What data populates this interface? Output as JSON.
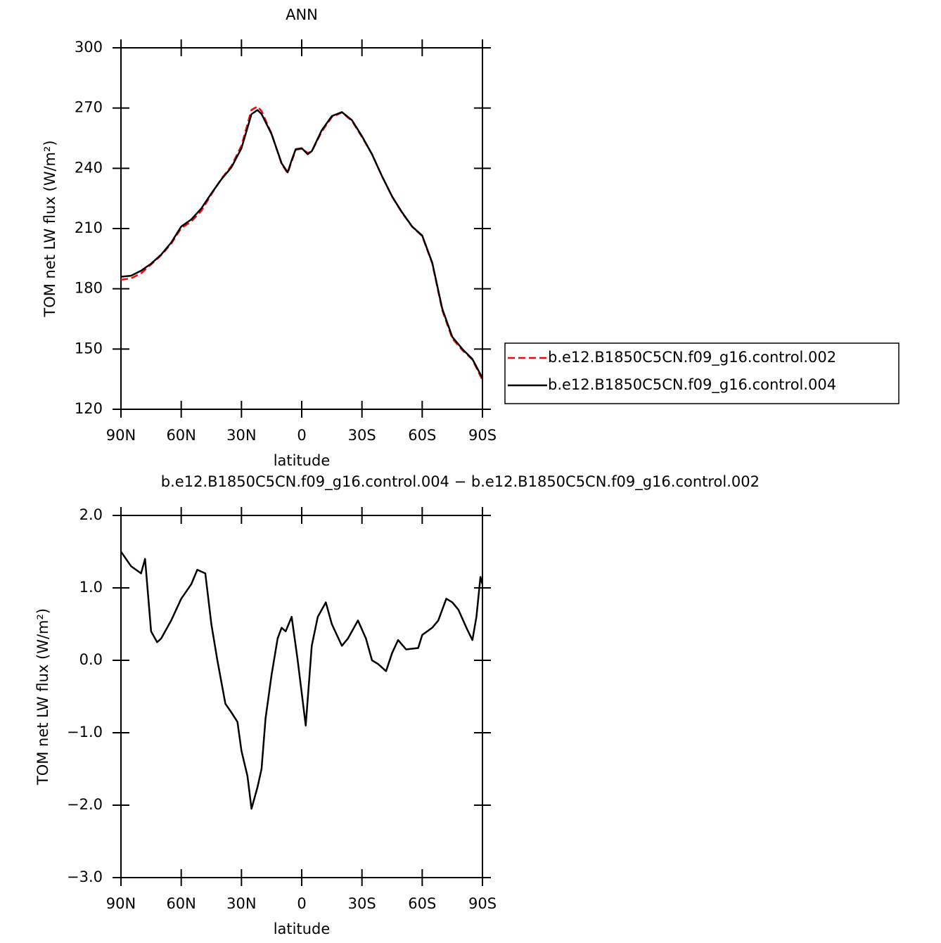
{
  "chart_data": [
    {
      "type": "line",
      "title": "ANN",
      "xlabel": "latitude",
      "ylabel": "TOM net LW flux (W/m²)",
      "x": [
        90,
        85,
        80,
        75,
        70,
        65,
        60,
        55,
        50,
        45,
        40,
        35,
        30,
        25,
        22,
        20,
        15,
        10,
        7,
        5,
        3,
        0,
        -3,
        -5,
        -10,
        -15,
        -20,
        -25,
        -30,
        -35,
        -40,
        -45,
        -50,
        -55,
        -60,
        -65,
        -70,
        -75,
        -80,
        -85,
        -90
      ],
      "series": [
        {
          "name": "b.e12.B1850C5CN.f09_g16.control.002",
          "color": "#ff0000",
          "style": "dashed",
          "values": [
            184.5,
            185.2,
            187.7,
            192.1,
            196.7,
            202.4,
            210.2,
            213.5,
            218.8,
            227,
            234.8,
            241.2,
            251.3,
            269.1,
            270.8,
            268.5,
            257.2,
            242.1,
            237.6,
            243.4,
            249.2,
            249.7,
            247.7,
            248.3,
            258.3,
            265.5,
            267.8,
            263.6,
            255.6,
            247,
            236.1,
            225.9,
            217.8,
            210.9,
            206.2,
            192.6,
            169.2,
            155.2,
            149.4,
            144.7,
            134.5
          ]
        },
        {
          "name": "b.e12.B1850C5CN.f09_g16.control.004",
          "color": "#000000",
          "style": "solid",
          "values": [
            186,
            186.5,
            189,
            192.5,
            197,
            203,
            211,
            214.5,
            220,
            227.5,
            234.5,
            240.5,
            250,
            267,
            269,
            267,
            257,
            242.5,
            238,
            244,
            249.5,
            250,
            247,
            248.5,
            259,
            266,
            268,
            264,
            256,
            247,
            236,
            226,
            218,
            211,
            206.5,
            193,
            170,
            156,
            150,
            145,
            135.5
          ]
        }
      ],
      "xlim": [
        90,
        -90
      ],
      "xticks": [
        {
          "value": 90,
          "label": "90N"
        },
        {
          "value": 60,
          "label": "60N"
        },
        {
          "value": 30,
          "label": "30N"
        },
        0,
        {
          "value": -30,
          "label": "30S"
        },
        {
          "value": -60,
          "label": "60S"
        },
        {
          "value": -90,
          "label": "90S"
        }
      ],
      "ylim": [
        120,
        300
      ],
      "yticks": [
        120,
        150,
        180,
        210,
        240,
        270,
        300
      ],
      "legend": "right"
    },
    {
      "type": "line",
      "title": "b.e12.B1850C5CN.f09_g16.control.004 − b.e12.B1850C5CN.f09_g16.control.002",
      "xlabel": "latitude",
      "ylabel": "TOM net LW flux (W/m²)",
      "x": [
        90,
        85,
        80,
        78,
        75,
        72,
        70,
        65,
        60,
        55,
        52,
        48,
        45,
        42,
        38,
        35,
        32,
        30,
        27,
        25,
        22,
        20,
        18,
        15,
        12,
        10,
        8,
        5,
        2,
        -2,
        -5,
        -8,
        -12,
        -15,
        -20,
        -23,
        -28,
        -32,
        -35,
        -38,
        -42,
        -45,
        -48,
        -52,
        -58,
        -60,
        -65,
        -68,
        -72,
        -75,
        -78,
        -82,
        -85,
        -87,
        -89,
        -90
      ],
      "values": [
        1.5,
        1.3,
        1.2,
        1.4,
        0.4,
        0.25,
        0.3,
        0.55,
        0.85,
        1.05,
        1.25,
        1.2,
        0.5,
        0.0,
        -0.6,
        -0.72,
        -0.85,
        -1.25,
        -1.6,
        -2.05,
        -1.75,
        -1.5,
        -0.8,
        -0.2,
        0.3,
        0.45,
        0.4,
        0.6,
        0.0,
        -0.9,
        0.2,
        0.6,
        0.8,
        0.5,
        0.2,
        0.3,
        0.55,
        0.3,
        0.0,
        -0.05,
        -0.15,
        0.1,
        0.28,
        0.15,
        0.17,
        0.35,
        0.45,
        0.55,
        0.85,
        0.8,
        0.7,
        0.45,
        0.28,
        0.6,
        1.15,
        1.05
      ],
      "color": "#000000",
      "xlim": [
        90,
        -90
      ],
      "xticks": [
        {
          "value": 90,
          "label": "90N"
        },
        {
          "value": 60,
          "label": "60N"
        },
        {
          "value": 30,
          "label": "30N"
        },
        0,
        {
          "value": -30,
          "label": "30S"
        },
        {
          "value": -60,
          "label": "60S"
        },
        {
          "value": -90,
          "label": "90S"
        }
      ],
      "ylim": [
        -3,
        2
      ],
      "yticks": [
        {
          "value": -3,
          "label": "−3.0"
        },
        {
          "value": -2,
          "label": "−2.0"
        },
        {
          "value": -1,
          "label": "−1.0"
        },
        {
          "value": 0,
          "label": "0.0"
        },
        {
          "value": 1,
          "label": "1.0"
        },
        {
          "value": 2,
          "label": "2.0"
        }
      ]
    }
  ]
}
